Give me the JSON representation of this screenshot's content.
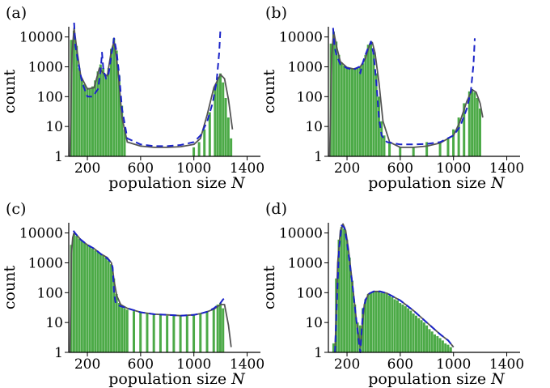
{
  "colors": {
    "bars": "#4caa47",
    "solid_curve": "#555555",
    "dashed_curve": "#1a23c8",
    "axis": "#000000"
  },
  "chart_data": [
    {
      "type": "bar",
      "panel": "(a)",
      "xlabel": "population size",
      "xlabel_var": "N",
      "ylabel": "count",
      "yscale": "log",
      "xlim": [
        60,
        1500
      ],
      "ylim": [
        1,
        22000
      ],
      "xticks": [
        200,
        600,
        1000,
        1400
      ],
      "yticks": [
        "1",
        "10",
        "100",
        "1000",
        "10000"
      ],
      "histogram": [
        [
          80,
          8000
        ],
        [
          100,
          16000
        ],
        [
          120,
          5000
        ],
        [
          140,
          900
        ],
        [
          160,
          400
        ],
        [
          180,
          260
        ],
        [
          200,
          200
        ],
        [
          220,
          180
        ],
        [
          240,
          220
        ],
        [
          260,
          350
        ],
        [
          280,
          700
        ],
        [
          300,
          1200
        ],
        [
          320,
          900
        ],
        [
          340,
          500
        ],
        [
          360,
          900
        ],
        [
          380,
          4000
        ],
        [
          400,
          9000
        ],
        [
          420,
          3500
        ],
        [
          440,
          500
        ],
        [
          460,
          50
        ],
        [
          480,
          8
        ],
        [
          1000,
          2
        ],
        [
          1040,
          3
        ],
        [
          1080,
          8
        ],
        [
          1120,
          30
        ],
        [
          1160,
          200
        ],
        [
          1180,
          450
        ],
        [
          1200,
          600
        ],
        [
          1220,
          300
        ],
        [
          1240,
          90
        ],
        [
          1260,
          20
        ],
        [
          1280,
          4
        ]
      ],
      "series": [
        {
          "name": "",
          "style": "solid",
          "x": [
            70,
            85,
            100,
            120,
            150,
            200,
            250,
            290,
            320,
            350,
            380,
            400,
            430,
            460,
            500,
            600,
            700,
            800,
            900,
            1000,
            1050,
            1100,
            1150,
            1200,
            1230,
            1260,
            1290
          ],
          "y": [
            1,
            3000,
            20000,
            4000,
            500,
            180,
            200,
            900,
            600,
            500,
            3500,
            7000,
            800,
            20,
            3,
            2.2,
            2,
            2,
            2.1,
            2.5,
            4,
            25,
            200,
            550,
            400,
            80,
            8
          ]
        },
        {
          "name": "",
          "style": "dashed",
          "x": [
            100,
            110,
            130,
            160,
            200,
            240,
            280,
            300,
            310,
            320,
            340,
            360,
            380,
            400,
            420,
            440,
            460,
            500,
            600,
            700,
            800,
            900,
            1000,
            1050,
            1100,
            1140,
            1170,
            1190,
            1200
          ],
          "y": [
            30000,
            5000,
            1500,
            300,
            100,
            100,
            180,
            800,
            3000,
            800,
            400,
            600,
            2500,
            9000,
            3000,
            500,
            40,
            4,
            2.5,
            2.2,
            2.2,
            2.4,
            3,
            5,
            15,
            60,
            300,
            3000,
            20000
          ]
        }
      ]
    },
    {
      "type": "bar",
      "panel": "(b)",
      "xlabel": "population size",
      "xlabel_var": "N",
      "ylabel": "count",
      "yscale": "log",
      "xlim": [
        60,
        1500
      ],
      "ylim": [
        1,
        22000
      ],
      "xticks": [
        200,
        600,
        1000,
        1400
      ],
      "yticks": [
        "1",
        "10",
        "100",
        "1000",
        "10000"
      ],
      "histogram": [
        [
          80,
          6000
        ],
        [
          100,
          15000
        ],
        [
          120,
          7000
        ],
        [
          140,
          2500
        ],
        [
          160,
          1400
        ],
        [
          180,
          1100
        ],
        [
          200,
          1000
        ],
        [
          220,
          900
        ],
        [
          240,
          850
        ],
        [
          260,
          900
        ],
        [
          280,
          950
        ],
        [
          300,
          1000
        ],
        [
          320,
          1300
        ],
        [
          340,
          2500
        ],
        [
          360,
          5500
        ],
        [
          380,
          7000
        ],
        [
          400,
          3000
        ],
        [
          420,
          600
        ],
        [
          440,
          100
        ],
        [
          460,
          15
        ],
        [
          480,
          5
        ],
        [
          520,
          3
        ],
        [
          600,
          2
        ],
        [
          700,
          2
        ],
        [
          800,
          3
        ],
        [
          900,
          3
        ],
        [
          960,
          4
        ],
        [
          1000,
          8
        ],
        [
          1040,
          20
        ],
        [
          1080,
          60
        ],
        [
          1120,
          150
        ],
        [
          1140,
          180
        ],
        [
          1160,
          140
        ],
        [
          1180,
          90
        ],
        [
          1200,
          40
        ]
      ],
      "series": [
        {
          "name": "",
          "style": "solid",
          "x": [
            70,
            85,
            100,
            120,
            150,
            200,
            250,
            300,
            340,
            370,
            390,
            410,
            440,
            470,
            520,
            600,
            700,
            800,
            900,
            1000,
            1050,
            1100,
            1140,
            1170,
            1200,
            1220
          ],
          "y": [
            1,
            2500,
            15000,
            5000,
            1500,
            950,
            850,
            1000,
            2000,
            5500,
            6500,
            3000,
            300,
            15,
            3,
            2,
            2,
            2.2,
            2.8,
            5,
            15,
            70,
            170,
            140,
            60,
            20
          ]
        },
        {
          "name": "",
          "style": "dashed",
          "x": [
            95,
            105,
            120,
            150,
            200,
            250,
            290,
            300,
            310,
            330,
            360,
            380,
            400,
            420,
            440,
            460,
            500,
            600,
            700,
            800,
            900,
            1000,
            1050,
            1100,
            1130,
            1150,
            1160
          ],
          "y": [
            20000,
            5000,
            2500,
            1200,
            900,
            800,
            1000,
            600,
            1000,
            2000,
            4500,
            7000,
            2500,
            300,
            20,
            5,
            3,
            2.5,
            2.5,
            2.6,
            3,
            5,
            10,
            40,
            150,
            1200,
            9000
          ]
        }
      ]
    },
    {
      "type": "bar",
      "panel": "(c)",
      "xlabel": "population size",
      "xlabel_var": "N",
      "ylabel": "count",
      "yscale": "log",
      "xlim": [
        60,
        1500
      ],
      "ylim": [
        1,
        22000
      ],
      "xticks": [
        200,
        600,
        1000,
        1400
      ],
      "yticks": [
        "1",
        "10",
        "100",
        "1000",
        "10000"
      ],
      "histogram": [
        [
          80,
          4000
        ],
        [
          100,
          9500
        ],
        [
          120,
          8000
        ],
        [
          140,
          6500
        ],
        [
          160,
          5500
        ],
        [
          180,
          4600
        ],
        [
          200,
          4000
        ],
        [
          220,
          3500
        ],
        [
          240,
          3000
        ],
        [
          260,
          2600
        ],
        [
          280,
          2300
        ],
        [
          300,
          2000
        ],
        [
          320,
          1800
        ],
        [
          340,
          1500
        ],
        [
          360,
          1200
        ],
        [
          380,
          900
        ],
        [
          400,
          300
        ],
        [
          420,
          90
        ],
        [
          440,
          45
        ],
        [
          460,
          35
        ],
        [
          480,
          30
        ],
        [
          500,
          27
        ],
        [
          550,
          24
        ],
        [
          600,
          22
        ],
        [
          650,
          20
        ],
        [
          700,
          19
        ],
        [
          750,
          18
        ],
        [
          800,
          17
        ],
        [
          850,
          17
        ],
        [
          900,
          17
        ],
        [
          950,
          18
        ],
        [
          1000,
          19
        ],
        [
          1050,
          20
        ],
        [
          1100,
          24
        ],
        [
          1150,
          30
        ],
        [
          1180,
          40
        ],
        [
          1200,
          45
        ],
        [
          1220,
          30
        ]
      ],
      "series": [
        {
          "name": "",
          "style": "solid",
          "x": [
            70,
            80,
            90,
            100,
            120,
            150,
            200,
            250,
            300,
            350,
            380,
            390,
            400,
            420,
            450,
            500,
            600,
            700,
            800,
            900,
            1000,
            1050,
            1100,
            1150,
            1200,
            1230,
            1260,
            1280
          ],
          "y": [
            1,
            2000,
            7000,
            10000,
            8500,
            6000,
            4000,
            3000,
            2000,
            1500,
            1000,
            600,
            250,
            80,
            40,
            30,
            22,
            19,
            18,
            17,
            18,
            20,
            23,
            28,
            40,
            40,
            8,
            1.5
          ]
        },
        {
          "name": "",
          "style": "dashed",
          "x": [
            95,
            100,
            120,
            150,
            200,
            250,
            300,
            350,
            380,
            390,
            400,
            410,
            420,
            450,
            500,
            600,
            700,
            800,
            900,
            1000,
            1050,
            1100,
            1150,
            1200,
            1220,
            1240
          ],
          "y": [
            12000,
            11000,
            8500,
            6000,
            4000,
            3000,
            2000,
            1400,
            1000,
            700,
            100,
            50,
            40,
            35,
            30,
            22,
            19,
            18,
            17,
            18,
            20,
            23,
            30,
            45,
            60,
            70
          ]
        }
      ]
    },
    {
      "type": "bar",
      "panel": "(d)",
      "xlabel": "population size",
      "xlabel_var": "N",
      "ylabel": "count",
      "yscale": "log",
      "xlim": [
        60,
        1500
      ],
      "ylim": [
        1,
        22000
      ],
      "xticks": [
        200,
        600,
        1000,
        1400
      ],
      "yticks": [
        "1",
        "10",
        "100",
        "1000",
        "10000"
      ],
      "histogram": [
        [
          100,
          2
        ],
        [
          120,
          300
        ],
        [
          140,
          6000
        ],
        [
          160,
          16000
        ],
        [
          180,
          14000
        ],
        [
          200,
          6000
        ],
        [
          220,
          1500
        ],
        [
          240,
          250
        ],
        [
          260,
          40
        ],
        [
          280,
          10
        ],
        [
          300,
          8
        ],
        [
          320,
          30
        ],
        [
          340,
          60
        ],
        [
          360,
          90
        ],
        [
          380,
          100
        ],
        [
          400,
          110
        ],
        [
          420,
          110
        ],
        [
          440,
          105
        ],
        [
          460,
          100
        ],
        [
          480,
          95
        ],
        [
          500,
          90
        ],
        [
          520,
          80
        ],
        [
          540,
          70
        ],
        [
          560,
          60
        ],
        [
          580,
          55
        ],
        [
          600,
          45
        ],
        [
          620,
          40
        ],
        [
          640,
          35
        ],
        [
          660,
          30
        ],
        [
          680,
          25
        ],
        [
          700,
          20
        ],
        [
          720,
          17
        ],
        [
          740,
          14
        ],
        [
          760,
          12
        ],
        [
          780,
          10
        ],
        [
          800,
          8
        ],
        [
          820,
          6
        ],
        [
          840,
          5
        ],
        [
          860,
          4
        ],
        [
          880,
          3.5
        ],
        [
          900,
          3
        ],
        [
          920,
          2.5
        ],
        [
          940,
          2
        ],
        [
          960,
          1.8
        ],
        [
          980,
          1.5
        ]
      ],
      "series": [
        {
          "name": "",
          "style": "solid",
          "x": [
            110,
            130,
            150,
            170,
            190,
            210,
            230,
            250,
            270,
            290,
            300,
            310,
            330,
            360,
            400,
            450,
            500,
            600,
            700,
            800,
            900,
            960,
            1000
          ],
          "y": [
            1,
            1000,
            12000,
            20000,
            12000,
            3000,
            500,
            80,
            12,
            3,
            1.5,
            4,
            40,
            90,
            110,
            110,
            95,
            55,
            25,
            10,
            4,
            2.5,
            1.5
          ]
        },
        {
          "name": "",
          "style": "dashed",
          "x": [
            110,
            120,
            140,
            160,
            180,
            200,
            220,
            240,
            260,
            280,
            290,
            300,
            310,
            320,
            340,
            370,
            400,
            450,
            500,
            600,
            700,
            800,
            900,
            960,
            1000
          ],
          "y": [
            1,
            20,
            3000,
            18000,
            15000,
            5000,
            1000,
            200,
            30,
            5,
            2,
            1,
            5,
            25,
            60,
            95,
            110,
            110,
            95,
            55,
            25,
            10,
            4,
            2.5,
            1.5
          ]
        }
      ]
    }
  ]
}
